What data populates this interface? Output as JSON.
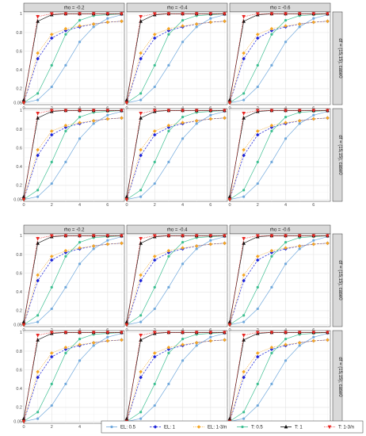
{
  "chart_data": {
    "type": "line",
    "layout": "faceted-grid",
    "blocks": [
      {
        "column_strips": [
          "rho = -0.2",
          "rho = -0.4",
          "rho = -0.6"
        ],
        "row_strips": [
          "df = (15,15), case0",
          "df = (15,15), case0"
        ]
      },
      {
        "column_strips": [
          "rho = -0.2",
          "rho = -0.4",
          "rho = -0.6"
        ],
        "row_strips": [
          "df = (15,15), case0",
          "df = (15,15), case0"
        ]
      }
    ],
    "x_ticks": [
      "0",
      "2",
      "4",
      "6"
    ],
    "y_ticks": [
      "0.05",
      "0.2",
      "0.4",
      "0.6",
      "0.8",
      "1"
    ],
    "xlim": [
      0,
      7.2
    ],
    "ylim": [
      0.03,
      1.02
    ],
    "grid": true,
    "legend_position": "bottom",
    "x": [
      0,
      1,
      2,
      3,
      4,
      5,
      6,
      7
    ],
    "series": [
      {
        "name": "EL: 0.5",
        "color": "#6fa8dc",
        "marker": "circle",
        "line": "solid",
        "values": [
          0.05,
          0.08,
          0.22,
          0.45,
          0.7,
          0.86,
          0.95,
          0.99
        ]
      },
      {
        "name": "EL: 1",
        "color": "#1c24d8",
        "marker": "diamond",
        "line": "dashed",
        "values": [
          0.05,
          0.52,
          0.74,
          0.82,
          0.86,
          0.89,
          0.91,
          0.92
        ]
      },
      {
        "name": "EL: 1-3/n",
        "color": "#f5a623",
        "marker": "diamond",
        "line": "dotted",
        "values": [
          0.05,
          0.58,
          0.78,
          0.84,
          0.87,
          0.89,
          0.91,
          0.92
        ]
      },
      {
        "name": "T: 0.5",
        "color": "#3cbf91",
        "marker": "circle",
        "line": "solid",
        "values": [
          0.05,
          0.15,
          0.45,
          0.78,
          0.93,
          0.98,
          0.99,
          1.0
        ]
      },
      {
        "name": "T: 1",
        "color": "#111111",
        "marker": "triangle",
        "line": "solid",
        "values": [
          0.08,
          0.92,
          0.99,
          1.0,
          1.0,
          1.0,
          1.0,
          1.0
        ]
      },
      {
        "name": "T: 1-3/n",
        "color": "#e8231f",
        "marker": "triangle-down",
        "line": "dotted",
        "values": [
          0.05,
          0.97,
          1.0,
          1.0,
          1.0,
          1.0,
          1.0,
          1.0
        ]
      }
    ]
  }
}
